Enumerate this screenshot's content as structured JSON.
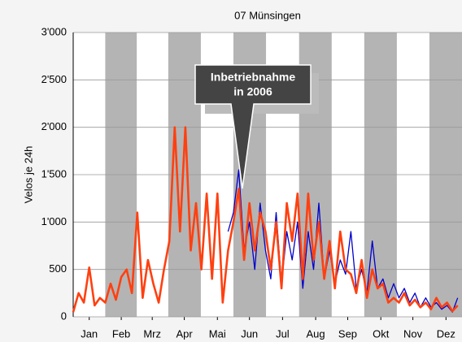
{
  "chart_data": {
    "type": "line",
    "title": "07 Münsingen",
    "ylabel": "Velos je 24h",
    "annotation": [
      "Inbetriebnahme",
      "in 2006"
    ],
    "xlim": [
      1,
      365
    ],
    "ylim": [
      0,
      3000
    ],
    "xticks": [
      {
        "value": 16,
        "label": "Jan"
      },
      {
        "value": 46,
        "label": "Feb"
      },
      {
        "value": 75,
        "label": "Mrz"
      },
      {
        "value": 105,
        "label": "Apr"
      },
      {
        "value": 136,
        "label": "Mai"
      },
      {
        "value": 166,
        "label": "Jun"
      },
      {
        "value": 197,
        "label": "Jul"
      },
      {
        "value": 228,
        "label": "Aug"
      },
      {
        "value": 258,
        "label": "Sep"
      },
      {
        "value": 289,
        "label": "Okt"
      },
      {
        "value": 319,
        "label": "Nov"
      },
      {
        "value": 350,
        "label": "Dez"
      }
    ],
    "yticks": [
      0,
      500,
      {
        "value": 1000,
        "label": "1'000"
      },
      {
        "value": 1500,
        "label": "1'500"
      },
      {
        "value": 2000,
        "label": "2'000"
      },
      {
        "value": 2500,
        "label": "2'500"
      },
      {
        "value": 3000,
        "label": "3'000"
      }
    ],
    "grid": true,
    "x": [
      1,
      6,
      11,
      16,
      21,
      26,
      31,
      36,
      41,
      46,
      51,
      56,
      61,
      66,
      71,
      76,
      81,
      86,
      91,
      96,
      101,
      106,
      111,
      116,
      121,
      126,
      131,
      136,
      141,
      146,
      151,
      156,
      161,
      166,
      171,
      176,
      181,
      186,
      191,
      196,
      201,
      206,
      211,
      216,
      221,
      226,
      231,
      236,
      241,
      246,
      251,
      256,
      261,
      266,
      271,
      276,
      281,
      286,
      291,
      296,
      301,
      306,
      311,
      316,
      321,
      326,
      331,
      336,
      341,
      346,
      351,
      356,
      361
    ],
    "series": [
      {
        "color": "#0000cc",
        "values": [
          null,
          null,
          null,
          null,
          null,
          null,
          null,
          null,
          null,
          null,
          null,
          null,
          null,
          null,
          null,
          null,
          null,
          null,
          null,
          null,
          null,
          null,
          null,
          null,
          null,
          null,
          null,
          null,
          null,
          900,
          1100,
          1550,
          700,
          1000,
          500,
          1200,
          700,
          400,
          1100,
          350,
          900,
          600,
          1000,
          300,
          900,
          500,
          1200,
          400,
          700,
          350,
          600,
          450,
          900,
          300,
          500,
          250,
          800,
          300,
          400,
          200,
          350,
          200,
          300,
          150,
          250,
          100,
          200,
          100,
          150,
          80,
          120,
          50,
          200
        ]
      },
      {
        "color": "#ff4010",
        "values": [
          50,
          250,
          150,
          520,
          120,
          200,
          150,
          350,
          180,
          420,
          500,
          250,
          1100,
          200,
          600,
          350,
          150,
          500,
          800,
          2000,
          900,
          2000,
          700,
          1200,
          500,
          1300,
          400,
          1300,
          150,
          700,
          1000,
          1350,
          600,
          1200,
          700,
          1100,
          900,
          500,
          1000,
          300,
          1200,
          800,
          1300,
          400,
          1300,
          600,
          1000,
          400,
          800,
          300,
          900,
          500,
          450,
          250,
          600,
          200,
          500,
          300,
          350,
          150,
          200,
          150,
          250,
          120,
          180,
          100,
          150,
          80,
          200,
          100,
          150,
          60,
          120
        ]
      }
    ]
  }
}
